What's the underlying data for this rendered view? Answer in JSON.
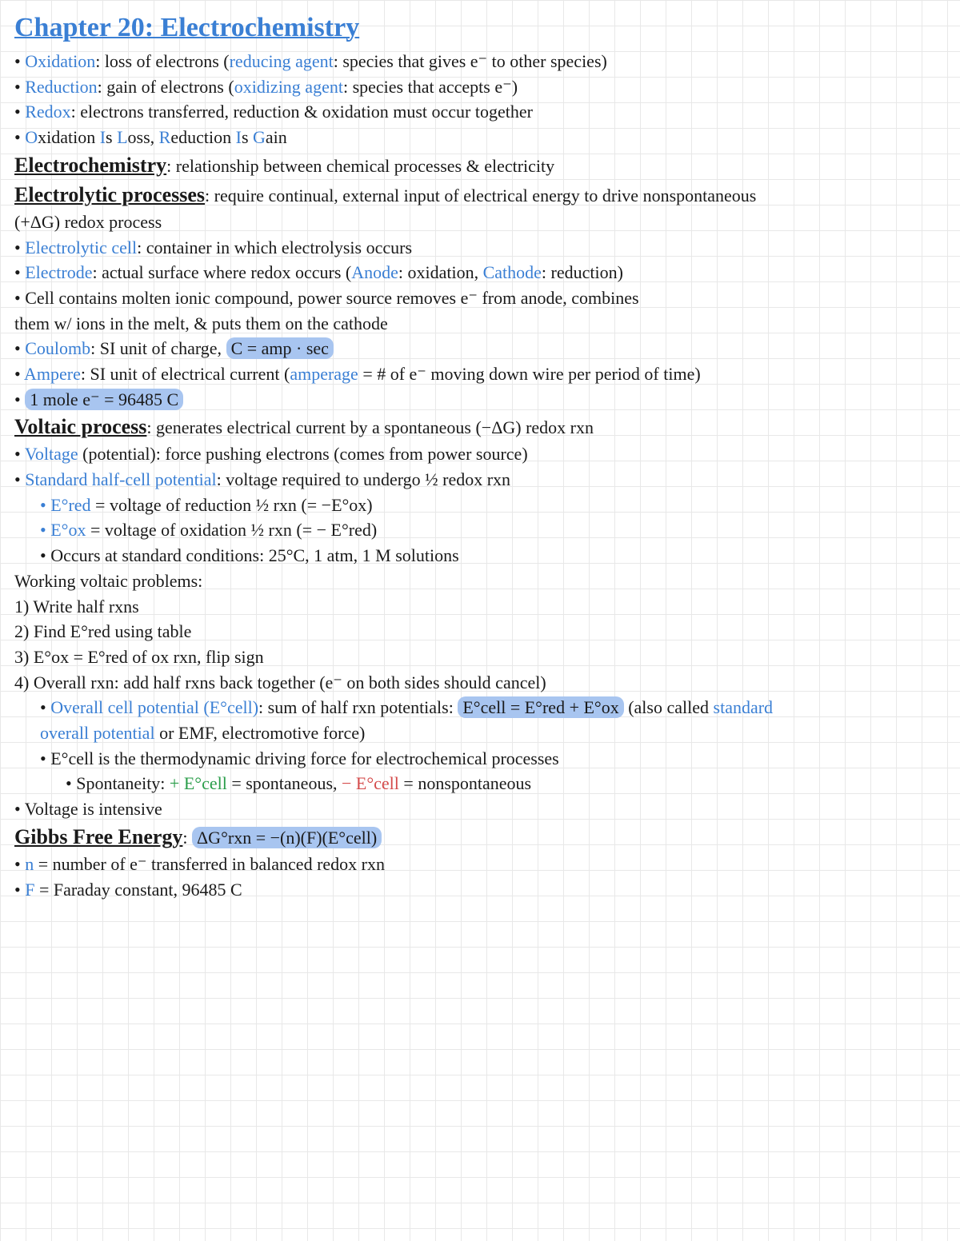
{
  "title": "Chapter 20: Electrochemistry",
  "colors": {
    "blue": "#3a7fd4",
    "green": "#2a9d4a",
    "red": "#d44a4a",
    "highlight": "#a8c5f0",
    "grid": "#e8e8e8",
    "bg": "#ffffff",
    "ink": "#1a1a1a"
  },
  "l": {
    "ox_term": "Oxidation",
    "ox_def": ": loss of electrons (",
    "ox_agent": "reducing agent",
    "ox_agent_def": ": species that gives e⁻ to other species)",
    "red_term": "Reduction",
    "red_def": ": gain of electrons (",
    "red_agent": "oxidizing agent",
    "red_agent_def": ": species that accepts e⁻)",
    "redox_term": "Redox",
    "redox_def": ": electrons transferred, reduction & oxidation must occur together",
    "oilrig_o": "O",
    "oilrig_1": "xidation ",
    "oilrig_i": "I",
    "oilrig_2": "s ",
    "oilrig_l": "L",
    "oilrig_3": "oss, ",
    "oilrig_r": "R",
    "oilrig_4": "eduction ",
    "oilrig_i2": "I",
    "oilrig_5": "s ",
    "oilrig_g": "G",
    "oilrig_6": "ain",
    "ec_term": "Electrochemistry",
    "ec_def": ": relationship between chemical processes & electricity",
    "ep_term": "Electrolytic processes",
    "ep_def": ": require continual, external input of electrical energy to drive nonspontaneous",
    "ep_def2": "(+ΔG) redox process",
    "ecell_term": "Electrolytic cell",
    "ecell_def": ": container in which electrolysis occurs",
    "electrode_term": "Electrode",
    "electrode_def": ": actual surface where redox occurs  (",
    "anode": "Anode",
    "anode_def": ": oxidation, ",
    "cathode": "Cathode",
    "cathode_def": ": reduction)",
    "cell_desc1": "• Cell contains molten ionic compound, power source removes e⁻ from anode, combines",
    "cell_desc2": "them w/ ions in the melt, & puts them on the cathode",
    "coulomb_term": "Coulomb",
    "coulomb_def": ": SI unit of charge, ",
    "coulomb_eq": "C = amp · sec",
    "ampere_term": "Ampere",
    "ampere_def": ": SI unit of electrical current (",
    "amperage": "amperage",
    "amperage_def": " = # of e⁻ moving down wire per period of time)",
    "mole_eq": "1 mole e⁻ = 96485 C",
    "vp_term": "Voltaic process",
    "vp_def": ": generates electrical current by a spontaneous (−ΔG) redox rxn",
    "voltage_term": "Voltage",
    "voltage_def": " (potential): force pushing electrons (comes from power source)",
    "shcp_term": "Standard half-cell potential",
    "shcp_def": ": voltage required to undergo ½ redox rxn",
    "ered": "• E°red",
    "ered_def": " = voltage of reduction ½ rxn (= −E°ox)",
    "eox": "• E°ox",
    "eox_def": " = voltage of oxidation ½ rxn (= − E°red)",
    "std_cond": "• Occurs at standard conditions: 25°C, 1 atm, 1 M solutions",
    "wvp": "Working voltaic problems:",
    "step1": "1) Write half rxns",
    "step2": "2) Find E°red using table",
    "step3": "3) E°ox = E°red of ox rxn, flip sign",
    "step4": "4) Overall rxn: add half rxns back together (e⁻ on both sides should cancel)",
    "ocp_term": "Overall cell potential (E°cell)",
    "ocp_def": ": sum of half rxn potentials: ",
    "ocp_eq": "E°cell = E°red + E°ox",
    "ocp_def2": "  (also called ",
    "sop": "standard",
    "sop2": "overall potential",
    "sop_def": " or EMF, electromotive force)",
    "ecell_driving": "• E°cell is the thermodynamic driving force for electrochemical processes",
    "spont": "• Spontaneity: ",
    "spont_pos": "+ E°cell",
    "spont_pos_def": " = spontaneous, ",
    "spont_neg": "− E°cell",
    "spont_neg_def": " = nonspontaneous",
    "volt_int": "• Voltage is intensive",
    "gfe_term": "Gibbs Free Energy",
    "gfe_def": ": ",
    "gfe_eq": "ΔG°rxn = −(n)(F)(E°cell)",
    "n_term": "n",
    "n_def": " = number of e⁻ transferred in balanced redox rxn",
    "f_term": "F",
    "f_def": " = Faraday constant, 96485 C"
  }
}
